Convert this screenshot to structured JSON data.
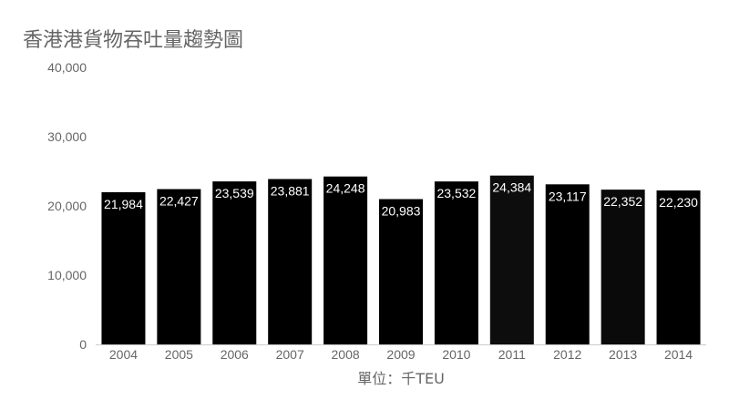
{
  "chart_data": {
    "type": "bar",
    "title": "香港港貨物吞吐量趨勢圖",
    "xlabel": "單位：千TEU",
    "ylabel": "",
    "categories": [
      "2004",
      "2005",
      "2006",
      "2007",
      "2008",
      "2009",
      "2010",
      "2011",
      "2012",
      "2013",
      "2014"
    ],
    "values": [
      21984,
      22427,
      23539,
      23881,
      24248,
      20983,
      23532,
      24384,
      23117,
      22352,
      22230
    ],
    "value_labels": [
      "21,984",
      "22,427",
      "23,539",
      "23,881",
      "24,248",
      "20,983",
      "23,532",
      "24,384",
      "23,117",
      "22,352",
      "22,230"
    ],
    "ylim": [
      0,
      40000
    ],
    "yticks": [
      0,
      10000,
      20000,
      30000,
      40000
    ],
    "ytick_labels": [
      "0",
      "10,000",
      "20,000",
      "30,000",
      "40,000"
    ],
    "grid": false,
    "legend": "none",
    "colors": {
      "bars": [
        "#000000",
        "#000000",
        "#000000",
        "#000000",
        "#000000",
        "#000000",
        "#000000",
        "#0d0d0d",
        "#000000",
        "#0a0a0a",
        "#000000"
      ],
      "axis": "#cccccc",
      "text": "#666666",
      "data_label": "#ffffff"
    }
  }
}
